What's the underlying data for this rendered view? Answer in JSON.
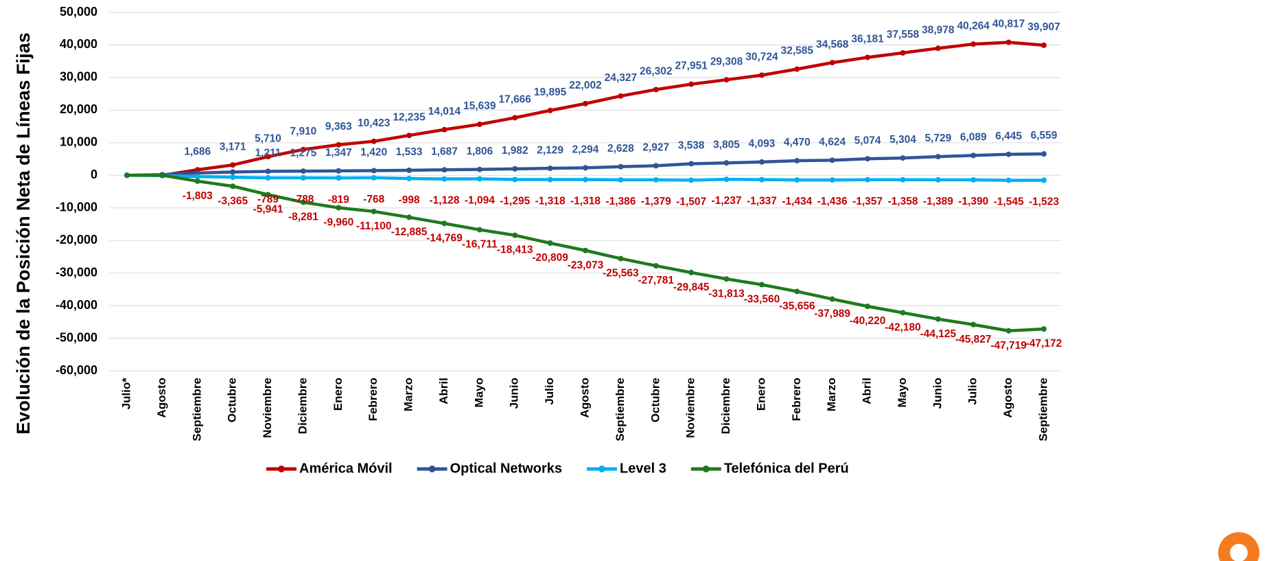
{
  "chart_data": {
    "type": "line",
    "y_label": "Evolución de la Posición Neta de Líneas Fijas",
    "categories": [
      "Julio*",
      "Agosto",
      "Septiembre",
      "Octubre",
      "Noviembre",
      "Diciembre",
      "Enero",
      "Febrero",
      "Marzo",
      "Abril",
      "Mayo",
      "Junio",
      "Julio",
      "Agosto",
      "Septiembre",
      "Octubre",
      "Noviembre",
      "Diciembre",
      "Enero",
      "Febrero",
      "Marzo",
      "Abril",
      "Mayo",
      "Junio",
      "Julio",
      "Agosto",
      "Septiembre"
    ],
    "ylim": [
      -60000,
      50000
    ],
    "yticks": [
      {
        "value": -60000,
        "label": "-60,000"
      },
      {
        "value": -50000,
        "label": "-50,000"
      },
      {
        "value": -40000,
        "label": "-40,000"
      },
      {
        "value": -30000,
        "label": "-30,000"
      },
      {
        "value": -20000,
        "label": "-20,000"
      },
      {
        "value": -10000,
        "label": "-10,000"
      },
      0,
      {
        "value": 10000,
        "label": "10,000"
      },
      {
        "value": 20000,
        "label": "20,000"
      },
      {
        "value": 30000,
        "label": "30,000"
      },
      {
        "value": 40000,
        "label": "40,000"
      },
      {
        "value": 50000,
        "label": "50,000"
      }
    ],
    "grid": true,
    "legend": "bottom",
    "series": [
      {
        "name": "América Móvil",
        "color": "#c00000",
        "label_color": "#2f5597",
        "values": [
          0,
          0,
          1686,
          3171,
          5710,
          7910,
          9363,
          10423,
          12235,
          14014,
          15639,
          17666,
          19895,
          22002,
          24327,
          26302,
          27951,
          29308,
          30724,
          32585,
          34568,
          36181,
          37558,
          38978,
          40264,
          40817,
          39907
        ],
        "value_labels": [
          null,
          null,
          "1,686",
          "3,171",
          "5,710",
          "7,910",
          "9,363",
          "10,423",
          "12,235",
          "14,014",
          "15,639",
          "17,666",
          "19,895",
          "22,002",
          "24,327",
          "26,302",
          "27,951",
          "29,308",
          "30,724",
          "32,585",
          "34,568",
          "36,181",
          "37,558",
          "38,978",
          "40,264",
          "40,817",
          "39,907"
        ]
      },
      {
        "name": "Optical Networks",
        "color": "#2f5597",
        "label_color": "#2f5597",
        "values": [
          0,
          200,
          700,
          1000,
          1211,
          1275,
          1347,
          1420,
          1533,
          1687,
          1806,
          1982,
          2129,
          2294,
          2628,
          2927,
          3538,
          3805,
          4093,
          4470,
          4624,
          5074,
          5304,
          5729,
          6089,
          6445,
          6559
        ],
        "value_labels": [
          null,
          null,
          null,
          null,
          "1,211",
          "1,275",
          "1,347",
          "1,420",
          "1,533",
          "1,687",
          "1,806",
          "1,982",
          "2,129",
          "2,294",
          "2,628",
          "2,927",
          "3,538",
          "3,805",
          "4,093",
          "4,470",
          "4,624",
          "5,074",
          "5,304",
          "5,729",
          "6,089",
          "6,445",
          "6,559"
        ]
      },
      {
        "name": "Level 3",
        "color": "#00b0f0",
        "label_color": "#c00000",
        "values": [
          0,
          -100,
          -400,
          -600,
          -789,
          -788,
          -819,
          -768,
          -998,
          -1128,
          -1094,
          -1295,
          -1318,
          -1318,
          -1386,
          -1379,
          -1507,
          -1237,
          -1337,
          -1434,
          -1436,
          -1357,
          -1358,
          -1389,
          -1390,
          -1545,
          -1523
        ],
        "value_labels": [
          null,
          null,
          null,
          null,
          "-789",
          "-788",
          "-819",
          "-768",
          "-998",
          "-1,128",
          "-1,094",
          "-1,295",
          "-1,318",
          "-1,318",
          "-1,386",
          "-1,379",
          "-1,507",
          "-1,237",
          "-1,337",
          "-1,434",
          "-1,436",
          "-1,357",
          "-1,358",
          "-1,389",
          "-1,390",
          "-1,545",
          "-1,523"
        ]
      },
      {
        "name": "Telefónica del Perú",
        "color": "#1e7a1e",
        "label_color": "#c00000",
        "values": [
          0,
          0,
          -1803,
          -3365,
          -5941,
          -8281,
          -9960,
          -11100,
          -12885,
          -14769,
          -16711,
          -18413,
          -20809,
          -23073,
          -25563,
          -27781,
          -29845,
          -31813,
          -33560,
          -35656,
          -37989,
          -40220,
          -42180,
          -44125,
          -45827,
          -47719,
          -47172
        ],
        "value_labels": [
          null,
          null,
          "-1,803",
          "-3,365",
          "-5,941",
          "-8,281",
          "-9,960",
          "-11,100",
          "-12,885",
          "-14,769",
          "-16,711",
          "-18,413",
          "-20,809",
          "-23,073",
          "-25,563",
          "-27,781",
          "-29,845",
          "-31,813",
          "-33,560",
          "-35,656",
          "-37,989",
          "-40,220",
          "-42,180",
          "-44,125",
          "-45,827",
          "-47,719",
          "-47,172"
        ]
      }
    ]
  }
}
